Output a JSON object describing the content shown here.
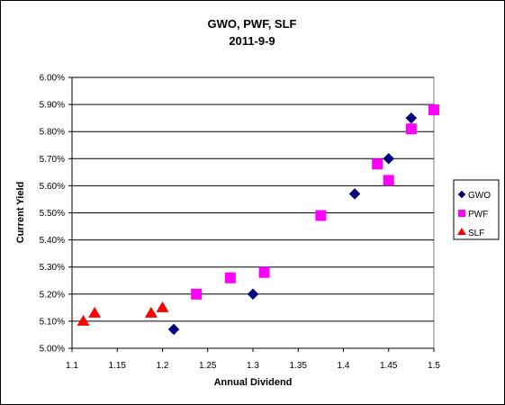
{
  "chart_data": {
    "type": "scatter",
    "title": "GWO, PWF, SLF",
    "subtitle": "2011-9-9",
    "xlabel": "Annual Dividend",
    "ylabel": "Current Yield",
    "xlim": [
      1.1,
      1.5
    ],
    "ylim": [
      5.0,
      6.0
    ],
    "x_ticks": [
      "1.1",
      "1.15",
      "1.2",
      "1.25",
      "1.3",
      "1.35",
      "1.4",
      "1.45",
      "1.5"
    ],
    "y_ticks": [
      "5.00%",
      "5.10%",
      "5.20%",
      "5.30%",
      "5.40%",
      "5.50%",
      "5.60%",
      "5.70%",
      "5.80%",
      "5.90%",
      "6.00%"
    ],
    "grid": "horizontal",
    "legend_position": "right",
    "series": [
      {
        "name": "GWO",
        "marker": "diamond",
        "color": "#000080",
        "points": [
          [
            1.2125,
            5.07
          ],
          [
            1.3,
            5.2
          ],
          [
            1.4125,
            5.57
          ],
          [
            1.45,
            5.7
          ],
          [
            1.475,
            5.85
          ]
        ]
      },
      {
        "name": "PWF",
        "marker": "square",
        "color": "#FF00FF",
        "points": [
          [
            1.2375,
            5.2
          ],
          [
            1.275,
            5.26
          ],
          [
            1.3125,
            5.28
          ],
          [
            1.375,
            5.49
          ],
          [
            1.4375,
            5.68
          ],
          [
            1.45,
            5.62
          ],
          [
            1.475,
            5.81
          ],
          [
            1.5,
            5.88
          ]
        ]
      },
      {
        "name": "SLF",
        "marker": "triangle",
        "color": "#FF0000",
        "points": [
          [
            1.1125,
            5.1
          ],
          [
            1.125,
            5.13
          ],
          [
            1.1875,
            5.13
          ],
          [
            1.2,
            5.15
          ]
        ]
      }
    ]
  }
}
